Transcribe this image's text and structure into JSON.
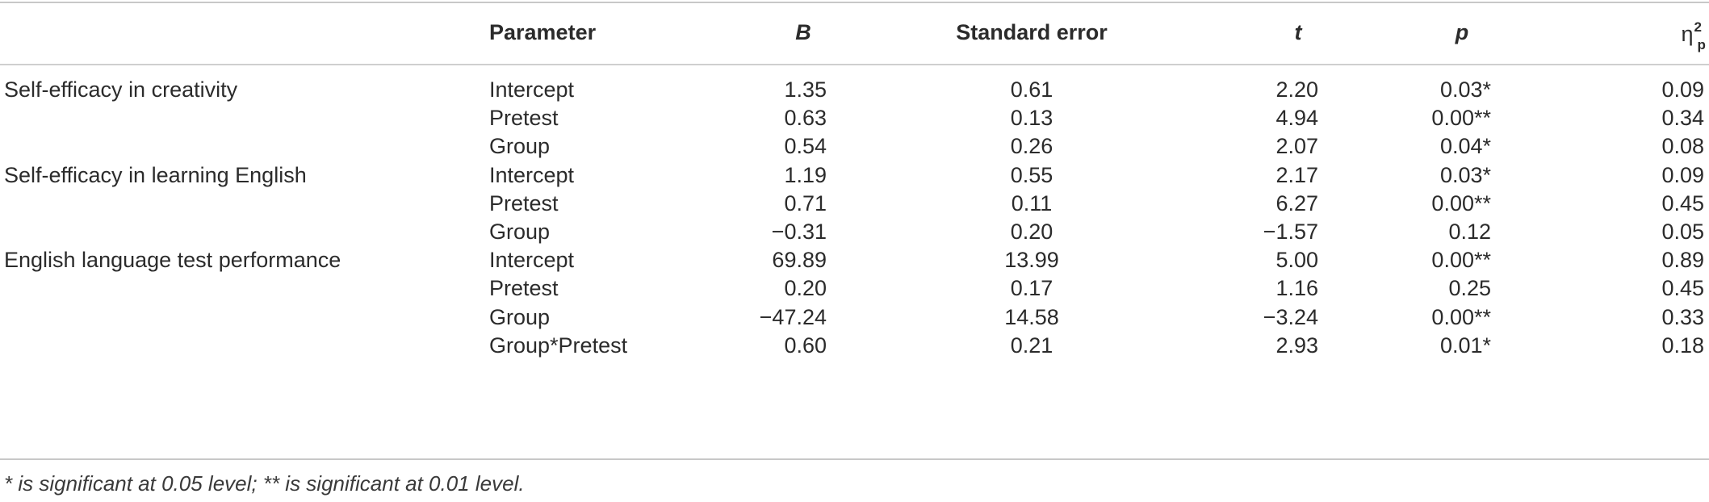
{
  "headers": {
    "parameter": "Parameter",
    "b": "B",
    "se": "Standard error",
    "t": "t",
    "p": "p",
    "eta": "η",
    "eta_sup": "2",
    "eta_sub": "p"
  },
  "rows": [
    {
      "outcome": "Self-efficacy in creativity",
      "parameter": "Intercept",
      "b": "1.35",
      "se": "0.61",
      "t": "2.20",
      "p": "0.03*",
      "eta": "0.09"
    },
    {
      "outcome": "",
      "parameter": "Pretest",
      "b": "0.63",
      "se": "0.13",
      "t": "4.94",
      "p": "0.00**",
      "eta": "0.34"
    },
    {
      "outcome": "",
      "parameter": "Group",
      "b": "0.54",
      "se": "0.26",
      "t": "2.07",
      "p": "0.04*",
      "eta": "0.08"
    },
    {
      "outcome": "Self-efficacy in learning English",
      "parameter": "Intercept",
      "b": "1.19",
      "se": "0.55",
      "t": "2.17",
      "p": "0.03*",
      "eta": "0.09"
    },
    {
      "outcome": "",
      "parameter": "Pretest",
      "b": "0.71",
      "se": "0.11",
      "t": "6.27",
      "p": "0.00**",
      "eta": "0.45"
    },
    {
      "outcome": "",
      "parameter": "Group",
      "b": "−0.31",
      "se": "0.20",
      "t": "−1.57",
      "p": "0.12",
      "eta": "0.05"
    },
    {
      "outcome": "English language test performance",
      "parameter": "Intercept",
      "b": "69.89",
      "se": "13.99",
      "t": "5.00",
      "p": "0.00**",
      "eta": "0.89"
    },
    {
      "outcome": "",
      "parameter": "Pretest",
      "b": "0.20",
      "se": "0.17",
      "t": "1.16",
      "p": "0.25",
      "eta": "0.45"
    },
    {
      "outcome": "",
      "parameter": "Group",
      "b": "−47.24",
      "se": "14.58",
      "t": "−3.24",
      "p": "0.00**",
      "eta": "0.33"
    },
    {
      "outcome": "",
      "parameter": "Group*Pretest",
      "b": "0.60",
      "se": "0.21",
      "t": "2.93",
      "p": "0.01*",
      "eta": "0.18"
    }
  ],
  "note": "* is significant at 0.05 level; ** is significant at 0.01 level."
}
